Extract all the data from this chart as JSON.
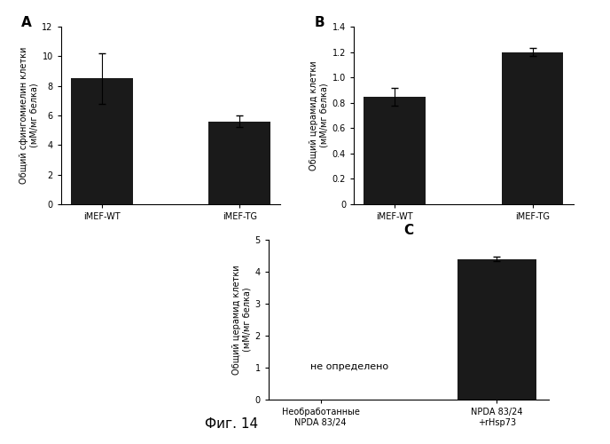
{
  "panel_A": {
    "label": "A",
    "categories": [
      "iMEF-WT",
      "iMEF-TG"
    ],
    "values": [
      8.5,
      5.6
    ],
    "errors": [
      1.7,
      0.4
    ],
    "ylabel": "Общий сфингомиелин клетки\n(мМ/мг белка)",
    "ylim": [
      0,
      12
    ],
    "yticks": [
      0,
      2,
      4,
      6,
      8,
      10,
      12
    ]
  },
  "panel_B": {
    "label": "B",
    "categories": [
      "iMEF-WT",
      "iMEF-TG"
    ],
    "values": [
      0.85,
      1.2
    ],
    "errors": [
      0.07,
      0.03
    ],
    "ylabel": "Общий церамид клетки\n(мМ/мг белка)",
    "ylim": [
      0,
      1.4
    ],
    "yticks": [
      0,
      0.2,
      0.4,
      0.6,
      0.8,
      1.0,
      1.2,
      1.4
    ]
  },
  "panel_C": {
    "label": "C",
    "categories": [
      "Необработанные\nNPDA 83/24",
      "NPDA 83/24\n+rHsp73"
    ],
    "values": [
      0,
      4.4
    ],
    "errors": [
      0,
      0.07
    ],
    "ylabel": "Общий церамид клетки\n(мМ/мг белка)",
    "ylim": [
      0,
      5
    ],
    "yticks": [
      0,
      1,
      2,
      3,
      4,
      5
    ],
    "annotation": "не определено"
  },
  "figure_label": "Фиг. 14",
  "bar_color": "#1a1a1a",
  "background_color": "#ffffff"
}
